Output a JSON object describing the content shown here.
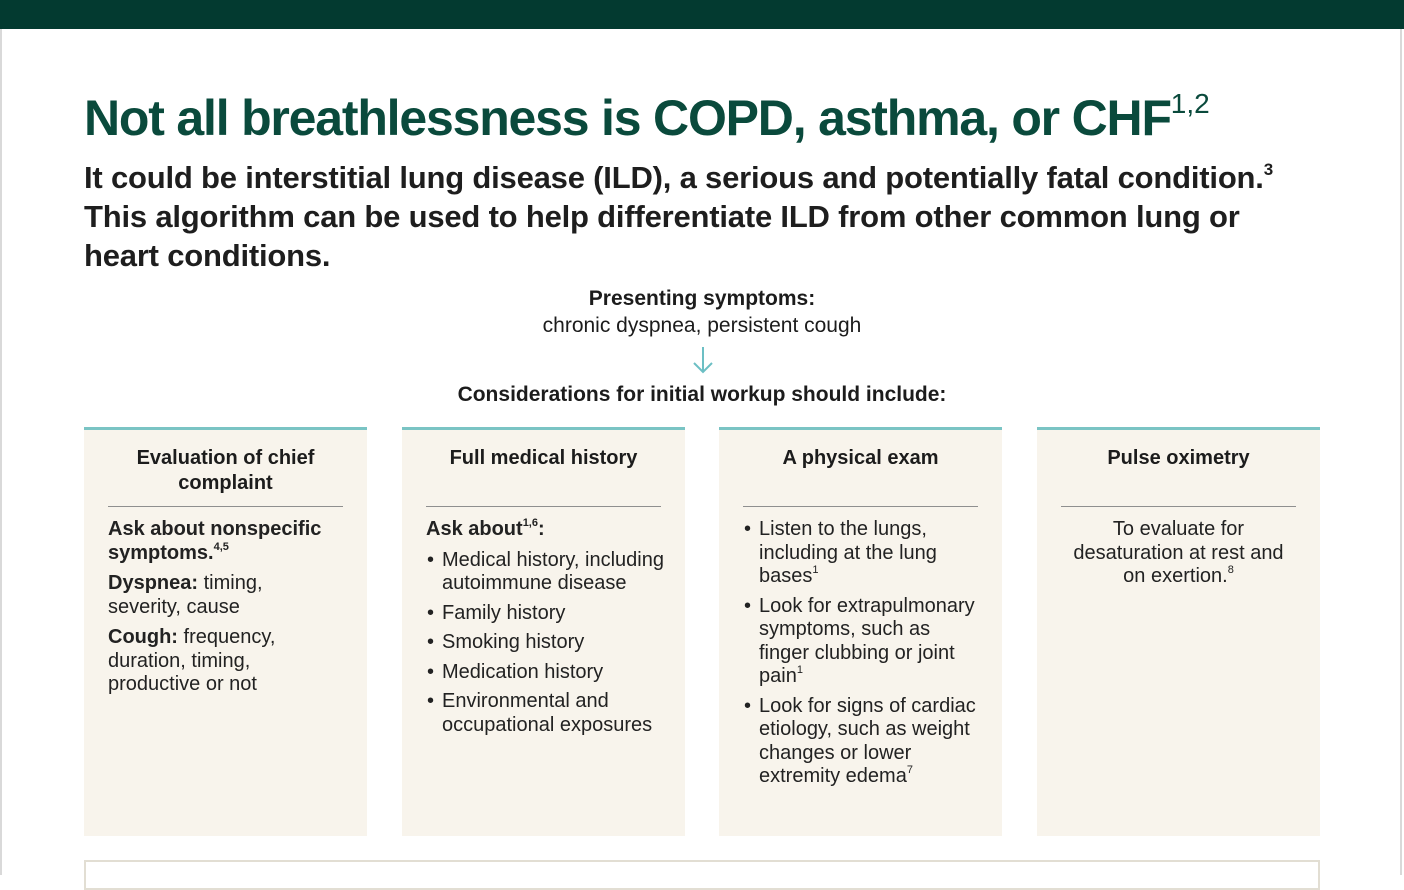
{
  "title": "Not all breathlessness is COPD, asthma, or CHF",
  "title_refs": "1,2",
  "subtitle": {
    "part1": "It could be interstitial lung disease (ILD), a serious and potentially fatal condition.",
    "ref": "3",
    "part2": " This algorithm can be used to help differentiate ILD from other common lung or heart conditions."
  },
  "presenting": {
    "heading": "Presenting symptoms:",
    "text": "chronic dyspnea, persistent cough"
  },
  "considerations": "Considerations for initial workup should include:",
  "colors": {
    "topbar": "#033a30",
    "title": "#0a4a3c",
    "card_bg": "#f8f4ec",
    "card_accent": "#7ac4c4"
  },
  "cards": [
    {
      "title": "Evaluation of chief complaint",
      "intro": "Ask about nonspecific symptoms.",
      "intro_refs": "4,5",
      "items": [
        {
          "label": "Dyspnea:",
          "text": " timing, severity, cause"
        },
        {
          "label": "Cough:",
          "text": " frequency, duration, timing, productive or not"
        }
      ]
    },
    {
      "title": "Full medical history",
      "intro": "Ask about",
      "intro_refs": "1,6",
      "intro_suffix": ":",
      "bullets": [
        "Medical history, including autoimmune disease",
        "Family history",
        "Smoking history",
        "Medication history",
        "Environmental and occupational exposures"
      ]
    },
    {
      "title": "A physical exam",
      "bullets": [
        {
          "text": "Listen to the lungs, including at the lung bases",
          "ref": "1"
        },
        {
          "text": "Look for extrapulmonary symptoms, such as finger clubbing or joint pain",
          "ref": "1"
        },
        {
          "text": "Look for signs of cardiac etiology, such as weight changes or lower extremity edema",
          "ref": "7"
        }
      ]
    },
    {
      "title": "Pulse oximetry",
      "text": "To evaluate for desaturation at rest and on exertion.",
      "ref": "8"
    }
  ]
}
